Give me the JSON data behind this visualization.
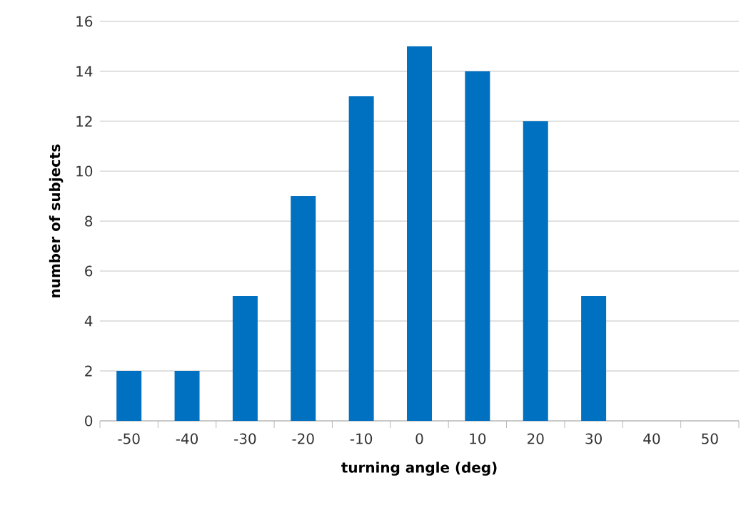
{
  "chart_data": {
    "type": "bar",
    "xlabel": "turning angle (deg)",
    "ylabel": "number of subjects",
    "categories": [
      "-50",
      "-40",
      "-30",
      "-20",
      "-10",
      "0",
      "10",
      "20",
      "30",
      "40",
      "50"
    ],
    "values": [
      2,
      2,
      5,
      9,
      13,
      15,
      14,
      12,
      5,
      0,
      0
    ],
    "color": "#0070c0",
    "ylim": [
      0,
      16
    ],
    "yticks": [
      0,
      2,
      4,
      6,
      8,
      10,
      12,
      14,
      16
    ],
    "grid": "y"
  }
}
